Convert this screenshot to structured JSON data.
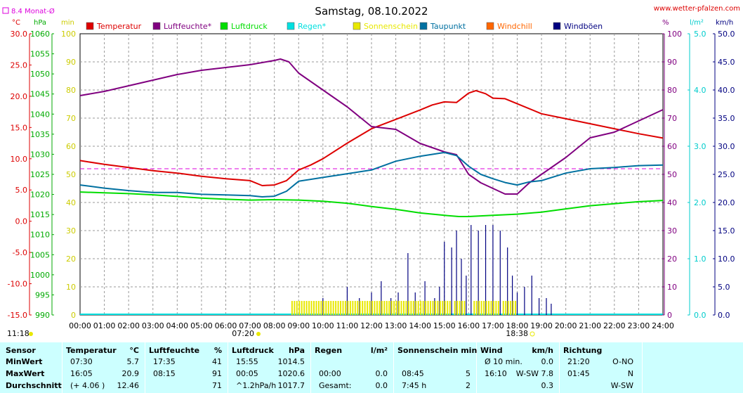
{
  "header": {
    "title": "Samstag, 08.10.2022",
    "site": "www.wetter-pfalzen.com",
    "month_avg": "8.4 Monat-Ø"
  },
  "units_top": {
    "celsius": "°C",
    "hpa": "hPa",
    "min": "min",
    "percent": "%",
    "rain": "l/m²",
    "wind": "km/h"
  },
  "legend": [
    {
      "label": "Temperatur",
      "color": "#dd0000"
    },
    {
      "label": "Luftfeuchte*",
      "color": "#800080"
    },
    {
      "label": "Luftdruck",
      "color": "#00dd00"
    },
    {
      "label": "Regen*",
      "color": "#00e0e0"
    },
    {
      "label": "Sonnenschein",
      "color": "#e8e800"
    },
    {
      "label": "Taupunkt",
      "color": "#0070a0"
    },
    {
      "label": "Windchill",
      "color": "#ff6600"
    },
    {
      "label": "Windböen",
      "color": "#000080"
    }
  ],
  "time_markers": {
    "sunrise": "07:20",
    "sunset": "18:38",
    "now": "11:18"
  },
  "chart_data": {
    "type": "line",
    "x_unit": "hours",
    "xlim": [
      0,
      24
    ],
    "x_ticks": [
      "00:00",
      "01:00",
      "02:00",
      "03:00",
      "04:00",
      "05:00",
      "06:00",
      "07:00",
      "08:00",
      "09:00",
      "10:00",
      "11:00",
      "12:00",
      "13:00",
      "14:00",
      "15:00",
      "16:00",
      "17:00",
      "18:00",
      "19:00",
      "20:00",
      "21:00",
      "22:00",
      "23:00",
      "24:00"
    ],
    "axes": {
      "temperature": {
        "unit": "°C",
        "ylim": [
          -15,
          30
        ],
        "ticks": [
          "30.0",
          "25.0",
          "20.0",
          "15.0",
          "10.0",
          "5.0",
          "0.0",
          "-5.0",
          "-10.0",
          "-15.0"
        ]
      },
      "pressure": {
        "unit": "hPa",
        "ylim": [
          990,
          1060
        ],
        "ticks": [
          "1060",
          "1055",
          "1050",
          "1045",
          "1040",
          "1035",
          "1030",
          "1025",
          "1020",
          "1015",
          "1010",
          "1005",
          "1000",
          "995",
          "990"
        ]
      },
      "sunshine": {
        "unit": "min",
        "ylim": [
          0,
          100
        ],
        "ticks": [
          "100",
          "90",
          "80",
          "70",
          "60",
          "50",
          "40",
          "30",
          "20",
          "10",
          "0"
        ]
      },
      "humidity": {
        "unit": "%",
        "ylim": [
          0,
          100
        ],
        "ticks": [
          "100",
          "90",
          "80",
          "70",
          "60",
          "50",
          "40",
          "30",
          "20",
          "10",
          "0"
        ]
      },
      "rain": {
        "unit": "l/m²",
        "ylim": [
          0,
          5
        ],
        "ticks": [
          "5.0",
          "4.0",
          "3.0",
          "2.0",
          "1.0",
          "0.0"
        ]
      },
      "wind": {
        "unit": "km/h",
        "ylim": [
          0,
          50
        ],
        "ticks": [
          "50.0",
          "45.0",
          "40.0",
          "35.0",
          "30.0",
          "25.0",
          "20.0",
          "15.0",
          "10.0",
          "5.0",
          "0.0"
        ]
      }
    },
    "month_avg_temperature": 8.4,
    "series": [
      {
        "name": "Temperatur",
        "axis": "temperature",
        "color": "#dd0000",
        "points": [
          [
            0,
            9.7
          ],
          [
            1,
            9.1
          ],
          [
            2,
            8.6
          ],
          [
            3,
            8.1
          ],
          [
            4,
            7.7
          ],
          [
            5,
            7.2
          ],
          [
            6,
            6.8
          ],
          [
            7,
            6.5
          ],
          [
            7.5,
            5.7
          ],
          [
            8,
            5.8
          ],
          [
            8.5,
            6.5
          ],
          [
            9,
            8.2
          ],
          [
            9.5,
            9.0
          ],
          [
            10,
            10.0
          ],
          [
            11,
            12.5
          ],
          [
            12,
            14.8
          ],
          [
            13,
            16.3
          ],
          [
            14,
            17.8
          ],
          [
            14.5,
            18.6
          ],
          [
            15,
            19.1
          ],
          [
            15.5,
            19.0
          ],
          [
            16,
            20.5
          ],
          [
            16.3,
            20.9
          ],
          [
            16.7,
            20.4
          ],
          [
            17,
            19.7
          ],
          [
            17.5,
            19.6
          ],
          [
            18,
            18.8
          ],
          [
            19,
            17.2
          ],
          [
            20,
            16.4
          ],
          [
            21,
            15.6
          ],
          [
            22,
            14.8
          ],
          [
            23,
            14.0
          ],
          [
            24,
            13.3
          ]
        ]
      },
      {
        "name": "Luftfeuchte*",
        "axis": "humidity",
        "color": "#800080",
        "points": [
          [
            0,
            78
          ],
          [
            1,
            79.5
          ],
          [
            2,
            81.5
          ],
          [
            3,
            83.5
          ],
          [
            4,
            85.5
          ],
          [
            5,
            87
          ],
          [
            6,
            88
          ],
          [
            7,
            89
          ],
          [
            8,
            90.5
          ],
          [
            8.25,
            91
          ],
          [
            8.6,
            90
          ],
          [
            9,
            86
          ],
          [
            10,
            80
          ],
          [
            11,
            74
          ],
          [
            12,
            67
          ],
          [
            13,
            66
          ],
          [
            14,
            61
          ],
          [
            15,
            58
          ],
          [
            15.5,
            57
          ],
          [
            16,
            50
          ],
          [
            16.5,
            47
          ],
          [
            17,
            45
          ],
          [
            17.5,
            43
          ],
          [
            18,
            43
          ],
          [
            18.5,
            47
          ],
          [
            19,
            50
          ],
          [
            20,
            56
          ],
          [
            21,
            63
          ],
          [
            22,
            65
          ],
          [
            23,
            69
          ],
          [
            24,
            73
          ]
        ]
      },
      {
        "name": "Luftdruck",
        "axis": "pressure",
        "color": "#00dd00",
        "points": [
          [
            0,
            1020.6
          ],
          [
            1,
            1020.4
          ],
          [
            2,
            1020.2
          ],
          [
            3,
            1019.9
          ],
          [
            4,
            1019.5
          ],
          [
            5,
            1019.1
          ],
          [
            6,
            1018.8
          ],
          [
            7,
            1018.6
          ],
          [
            8,
            1018.7
          ],
          [
            9,
            1018.6
          ],
          [
            10,
            1018.3
          ],
          [
            11,
            1017.8
          ],
          [
            12,
            1017.0
          ],
          [
            13,
            1016.3
          ],
          [
            14,
            1015.4
          ],
          [
            15,
            1014.8
          ],
          [
            15.6,
            1014.5
          ],
          [
            16,
            1014.5
          ],
          [
            17,
            1014.8
          ],
          [
            18,
            1015.1
          ],
          [
            19,
            1015.6
          ],
          [
            20,
            1016.4
          ],
          [
            21,
            1017.2
          ],
          [
            22,
            1017.7
          ],
          [
            23,
            1018.2
          ],
          [
            24,
            1018.5
          ]
        ]
      },
      {
        "name": "Taupunkt",
        "axis": "temperature",
        "color": "#0070a0",
        "points": [
          [
            0,
            5.8
          ],
          [
            1,
            5.3
          ],
          [
            2,
            4.9
          ],
          [
            3,
            4.6
          ],
          [
            4,
            4.6
          ],
          [
            5,
            4.3
          ],
          [
            6,
            4.2
          ],
          [
            7,
            4.1
          ],
          [
            7.5,
            3.9
          ],
          [
            8,
            4.0
          ],
          [
            8.5,
            4.8
          ],
          [
            9,
            6.4
          ],
          [
            10,
            7.0
          ],
          [
            11,
            7.6
          ],
          [
            12,
            8.2
          ],
          [
            13,
            9.6
          ],
          [
            14,
            10.4
          ],
          [
            15,
            11.0
          ],
          [
            15.5,
            10.5
          ],
          [
            16,
            8.8
          ],
          [
            16.5,
            7.5
          ],
          [
            17,
            6.8
          ],
          [
            17.5,
            6.2
          ],
          [
            18,
            5.8
          ],
          [
            18.5,
            6.3
          ],
          [
            19,
            6.5
          ],
          [
            20,
            7.7
          ],
          [
            21,
            8.4
          ],
          [
            22,
            8.6
          ],
          [
            23,
            8.9
          ],
          [
            24,
            9.0
          ]
        ]
      }
    ],
    "bars": [
      {
        "name": "Windböen",
        "axis": "wind",
        "color": "#000080",
        "points": [
          [
            10,
            3
          ],
          [
            11,
            5
          ],
          [
            11.5,
            3
          ],
          [
            12,
            4
          ],
          [
            12.4,
            6
          ],
          [
            12.8,
            3
          ],
          [
            13.1,
            4
          ],
          [
            13.5,
            11
          ],
          [
            13.8,
            4
          ],
          [
            14.2,
            6
          ],
          [
            14.6,
            3
          ],
          [
            14.8,
            5
          ],
          [
            15,
            13
          ],
          [
            15.3,
            12
          ],
          [
            15.5,
            15
          ],
          [
            15.7,
            10
          ],
          [
            15.9,
            7
          ],
          [
            16.1,
            16
          ],
          [
            16.4,
            15
          ],
          [
            16.7,
            16
          ],
          [
            17,
            16
          ],
          [
            17.3,
            15
          ],
          [
            17.6,
            12
          ],
          [
            17.8,
            7
          ],
          [
            18,
            4
          ],
          [
            18.3,
            5
          ],
          [
            18.6,
            7
          ],
          [
            18.9,
            3
          ],
          [
            19.2,
            3
          ],
          [
            19.4,
            2
          ]
        ]
      },
      {
        "name": "Sonnenschein",
        "axis": "sunshine",
        "color": "#e8e800",
        "ranges": [
          [
            8.7,
            15.2
          ],
          [
            15.4,
            15.8
          ],
          [
            16.2,
            17.3
          ],
          [
            17.4,
            18.0
          ]
        ],
        "level": 5
      }
    ]
  },
  "stats": {
    "headers": {
      "sensor": "Sensor",
      "temp": "Temperatur",
      "temp_unit": "°C",
      "hum": "Luftfeuchte",
      "hum_unit": "%",
      "press": "Luftdruck",
      "press_unit": "hPa",
      "rain": "Regen",
      "rain_unit": "l/m²",
      "sun": "Sonnenschein min",
      "wind": "Wind",
      "wind_unit": "km/h",
      "dir": "Richtung"
    },
    "rows": [
      {
        "label": "MinWert",
        "temp_time": "07:30",
        "temp_val": "5.7",
        "hum_time": "17:35",
        "hum_val": "41",
        "press_time": "15:55",
        "press_val": "1014.5",
        "rain_time": "",
        "rain_val": "",
        "sun_time": "",
        "sun_val": "",
        "wind_time": "Ø 10 min.",
        "wind_val": "0.0",
        "dir_time": "21:20",
        "dir_val": "O-NO"
      },
      {
        "label": "MaxWert",
        "temp_time": "16:05",
        "temp_val": "20.9",
        "hum_time": "08:15",
        "hum_val": "91",
        "press_time": "00:05",
        "press_val": "1020.6",
        "rain_time": "00:00",
        "rain_val": "0.0",
        "sun_time": "08:45",
        "sun_val": "5",
        "wind_time": "16:10",
        "wind_val": "W-SW 7.8",
        "dir_time": "01:45",
        "dir_val": "N"
      },
      {
        "label": "Durchschnitt",
        "temp_time": "(+ 4.06 )",
        "temp_val": "12.46",
        "hum_time": "",
        "hum_val": "71",
        "press_time": "^1.2hPa/h",
        "press_val": "1017.7",
        "rain_time": "Gesamt:",
        "rain_val": "0.0",
        "sun_time": "7:45 h",
        "sun_val": "2",
        "wind_time": "",
        "wind_val": "0.3",
        "dir_time": "",
        "dir_val": "W-SW"
      }
    ]
  }
}
